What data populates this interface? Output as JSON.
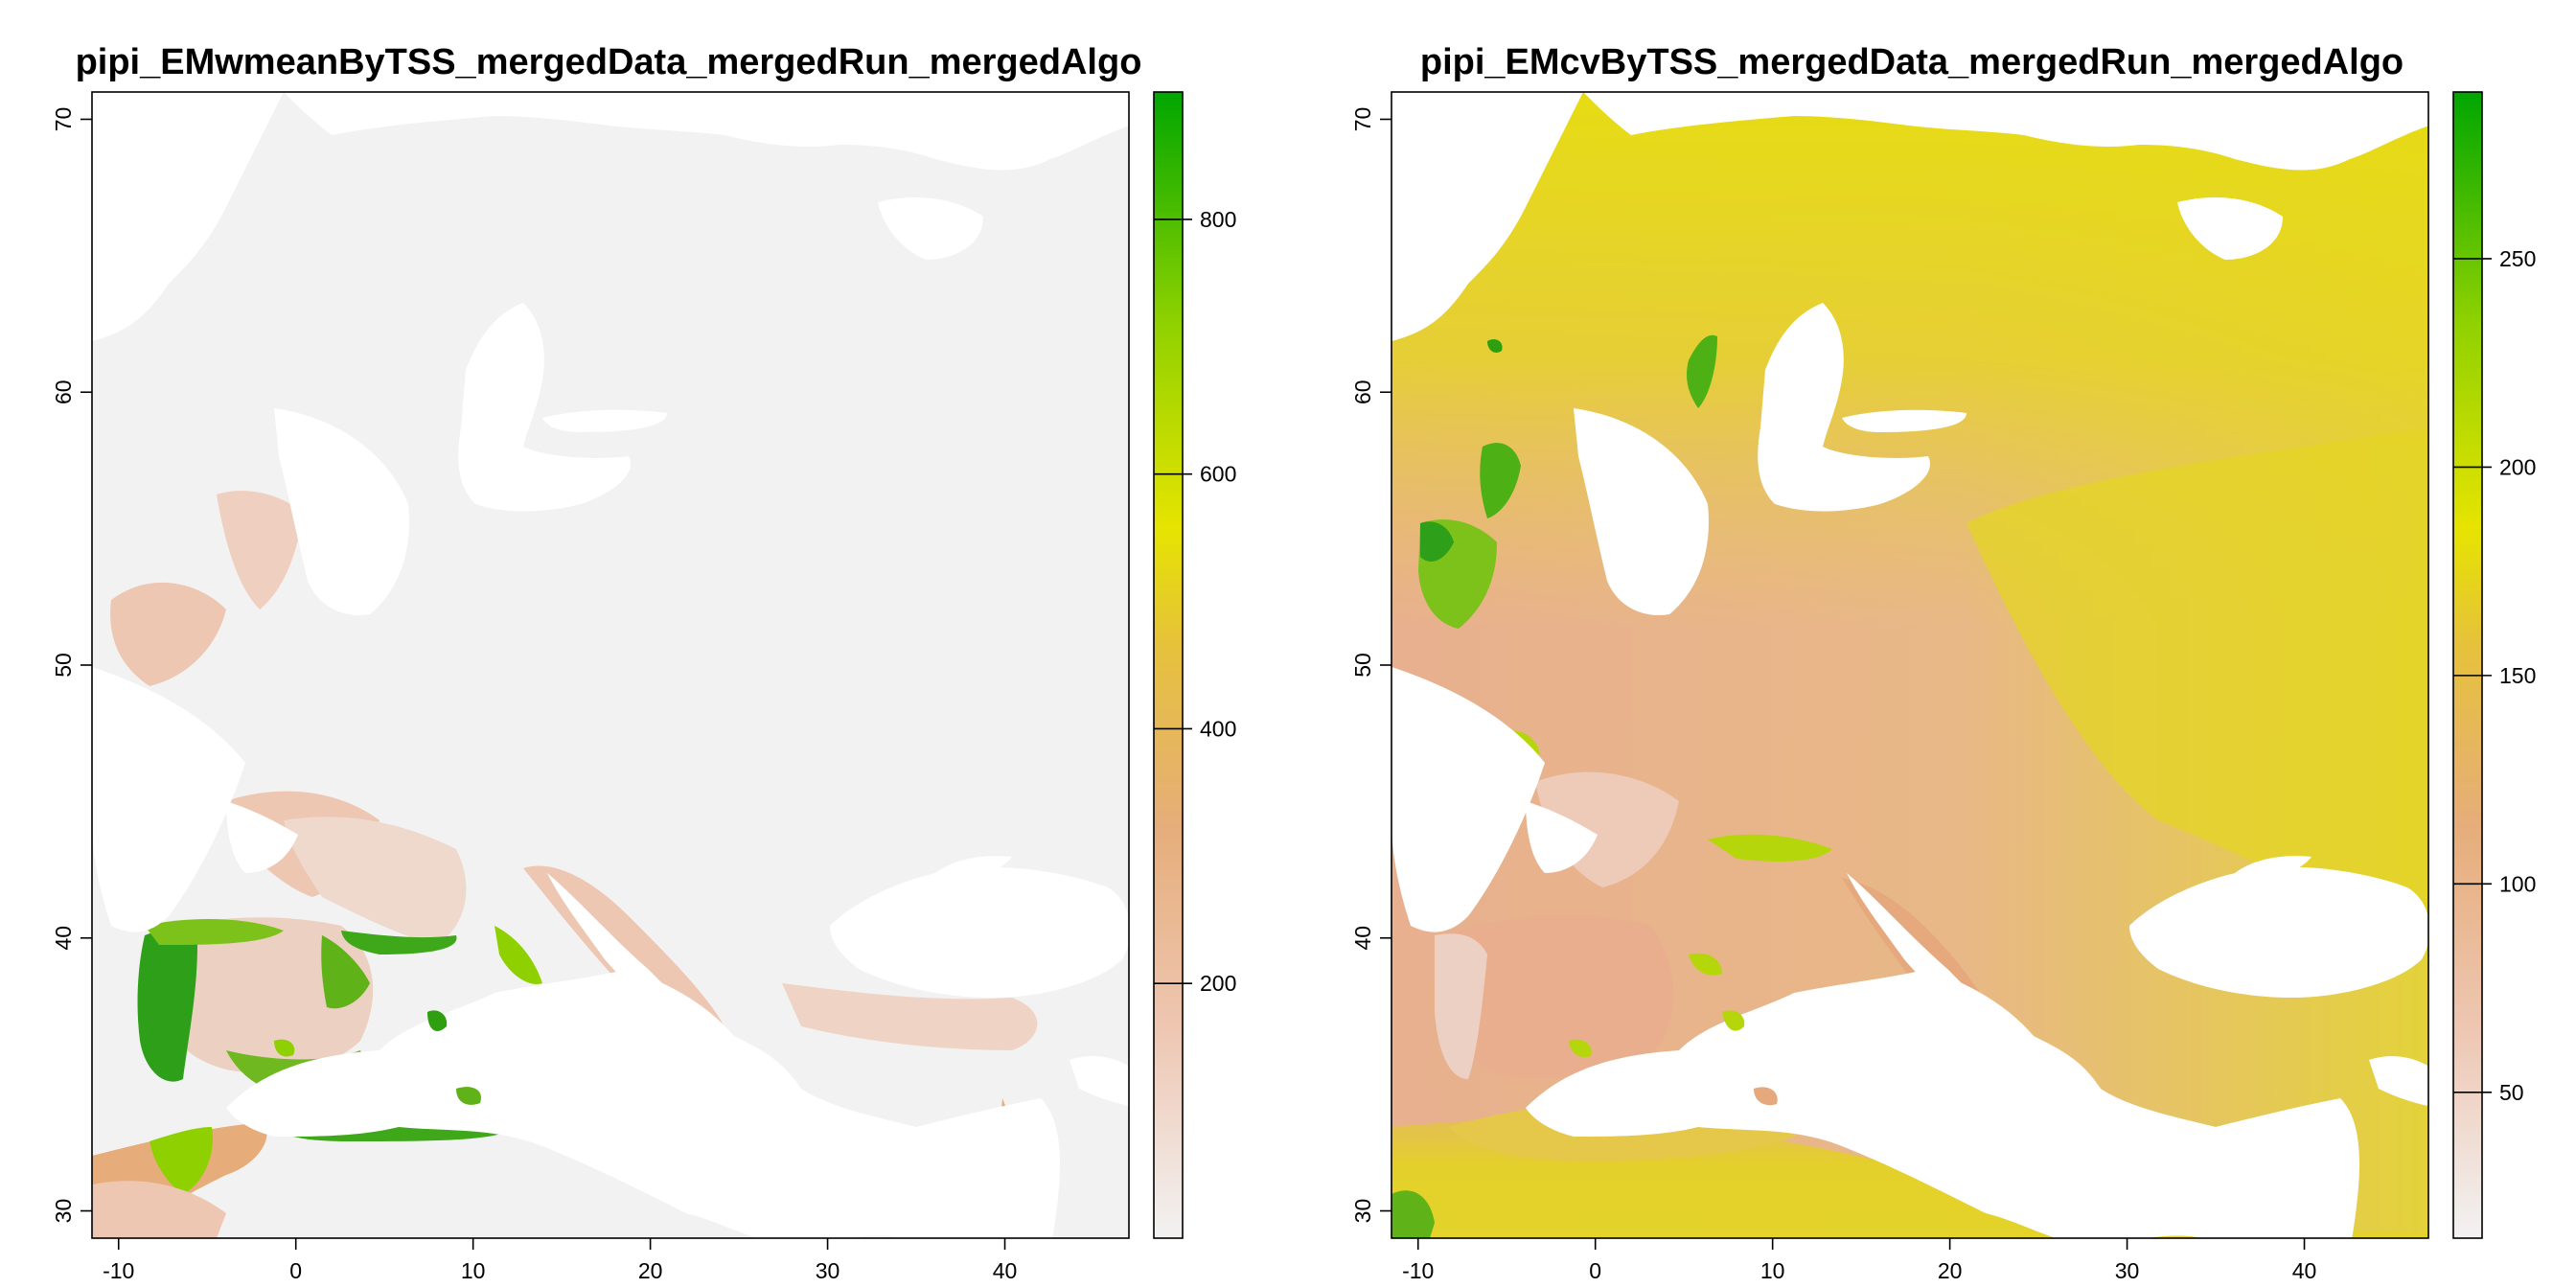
{
  "panels": [
    {
      "title": "pipi_EMwmeanByTSS_mergedData_mergedRun_mergedAlgo",
      "x_ticks": [
        "-10",
        "0",
        "10",
        "20",
        "30",
        "40"
      ],
      "y_ticks": [
        "30",
        "40",
        "50",
        "60",
        "70"
      ],
      "legend_ticks": [
        "200",
        "400",
        "600",
        "800"
      ],
      "legend_range": [
        0,
        900
      ],
      "legend_tick_values": [
        200,
        400,
        600,
        800
      ]
    },
    {
      "title": "pipi_EMcvByTSS_mergedData_mergedRun_mergedAlgo",
      "x_ticks": [
        "-10",
        "0",
        "10",
        "20",
        "30",
        "40"
      ],
      "y_ticks": [
        "30",
        "40",
        "50",
        "60",
        "70"
      ],
      "legend_ticks": [
        "50",
        "100",
        "150",
        "200",
        "250"
      ],
      "legend_range": [
        15,
        290
      ],
      "legend_tick_values": [
        50,
        100,
        150,
        200,
        250
      ]
    }
  ],
  "map_extent": {
    "lon": [
      -11.5,
      47
    ],
    "lat": [
      29,
      71
    ]
  },
  "colors": {
    "palette": [
      "#f2f2f2",
      "#eec7b3",
      "#e6ad7a",
      "#e6c23a",
      "#e6e400",
      "#8fd100",
      "#00a600"
    ],
    "low_background": "#f2f2f2",
    "sea": "#ffffff"
  }
}
